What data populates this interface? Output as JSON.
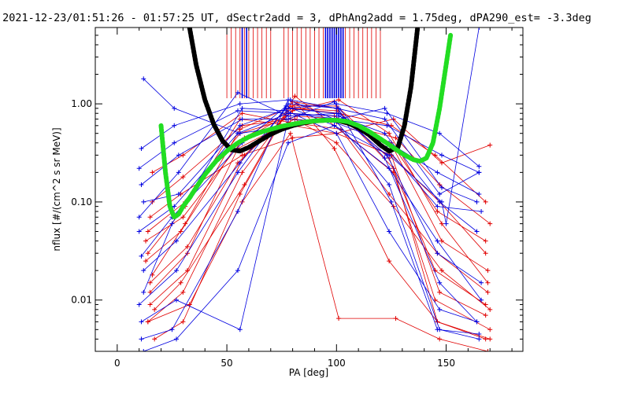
{
  "chart_data": {
    "type": "line",
    "title": "2021-12-23/01:51:26 - 01:57:25 UT, dSectr2add = 3, dPhAng2add = 1.75deg, dPA290_est=  -3.3deg",
    "xlabel": "PA [deg]",
    "ylabel": "nflux [#/(cm^2 s sr MeV)]",
    "xlim": [
      -10,
      185
    ],
    "ylim": [
      0.003,
      6
    ],
    "yscale": "log",
    "grid": false,
    "x_ticks": [
      0,
      50,
      100,
      150
    ],
    "x_tick_labels": [
      "0",
      "50",
      "100",
      "150"
    ],
    "y_ticks": [
      0.01,
      0.1,
      1.0
    ],
    "y_tick_labels": [
      "0.01",
      "0.10",
      "1.00"
    ],
    "colors": {
      "red": "#e00000",
      "blue": "#0000e0",
      "black": "#000000",
      "green": "#22dd22"
    },
    "series": [
      {
        "color": "red",
        "x": [
          17,
          30,
          56,
          80,
          100,
          126,
          146,
          168
        ],
        "y": [
          0.004,
          0.006,
          0.12,
          1.05,
          0.9,
          0.22,
          0.006,
          0.004
        ]
      },
      {
        "color": "red",
        "x": [
          14,
          30,
          57,
          80,
          100,
          125,
          147,
          168
        ],
        "y": [
          0.006,
          0.012,
          0.2,
          0.95,
          0.95,
          0.3,
          0.012,
          0.007
        ]
      },
      {
        "color": "red",
        "x": [
          15,
          32,
          58,
          81,
          100,
          124,
          145,
          168
        ],
        "y": [
          0.009,
          0.02,
          0.3,
          0.9,
          0.85,
          0.28,
          0.02,
          0.009
        ]
      },
      {
        "color": "red",
        "x": [
          13,
          29,
          55,
          79,
          99,
          126,
          148,
          169
        ],
        "y": [
          0.025,
          0.05,
          0.4,
          0.8,
          0.75,
          0.35,
          0.04,
          0.02
        ]
      },
      {
        "color": "red",
        "x": [
          14,
          31,
          56,
          82,
          101,
          125,
          146,
          168
        ],
        "y": [
          0.05,
          0.1,
          0.5,
          0.75,
          0.7,
          0.4,
          0.08,
          0.04
        ]
      },
      {
        "color": "red",
        "x": [
          16,
          30,
          57,
          79,
          100,
          127,
          147,
          170
        ],
        "y": [
          0.1,
          0.18,
          0.6,
          0.7,
          0.65,
          0.45,
          0.15,
          0.06
        ]
      },
      {
        "color": "red",
        "x": [
          15,
          32,
          55,
          80,
          101,
          124,
          148,
          169
        ],
        "y": [
          0.015,
          0.035,
          0.25,
          0.85,
          1.1,
          0.5,
          0.06,
          0.015
        ]
      },
      {
        "color": "red",
        "x": [
          17,
          29,
          58,
          81,
          99,
          126,
          145,
          170
        ],
        "y": [
          0.008,
          0.015,
          0.15,
          1.2,
          0.6,
          0.2,
          0.01,
          0.005
        ]
      },
      {
        "color": "red",
        "x": [
          14,
          31,
          56,
          80,
          100,
          125,
          147,
          168
        ],
        "y": [
          0.03,
          0.09,
          0.7,
          0.6,
          0.5,
          0.3,
          0.1,
          0.03
        ]
      },
      {
        "color": "red",
        "x": [
          16,
          30,
          57,
          78,
          102,
          124,
          146,
          169
        ],
        "y": [
          0.2,
          0.3,
          0.8,
          0.65,
          0.55,
          0.12,
          0.03,
          0.012
        ]
      },
      {
        "color": "red",
        "x": [
          15,
          32,
          55,
          81,
          100,
          126,
          148,
          170
        ],
        "y": [
          0.012,
          0.03,
          0.35,
          0.7,
          0.4,
          0.09,
          0.02,
          0.008
        ]
      },
      {
        "color": "red",
        "x": [
          13,
          30,
          58,
          80,
          101,
          125,
          145,
          168
        ],
        "y": [
          0.04,
          0.07,
          0.45,
          0.9,
          0.8,
          0.6,
          0.3,
          0.1
        ]
      },
      {
        "color": "red",
        "x": [
          14,
          33,
          57,
          79,
          101,
          127,
          147,
          169
        ],
        "y": [
          0.006,
          0.009,
          0.1,
          0.5,
          0.0065,
          0.0065,
          0.004,
          0.003
        ]
      },
      {
        "color": "red",
        "x": [
          16,
          31,
          56,
          82,
          99,
          124,
          146,
          170
        ],
        "y": [
          0.018,
          0.06,
          0.55,
          1.0,
          0.35,
          0.025,
          0.006,
          0.004
        ]
      },
      {
        "color": "red",
        "x": [
          15,
          29,
          57,
          80,
          100,
          126,
          148,
          170
        ],
        "y": [
          0.07,
          0.12,
          0.3,
          0.45,
          0.5,
          0.7,
          0.25,
          0.38
        ]
      },
      {
        "color": "blue",
        "x": [
          11,
          25,
          55,
          78,
          99,
          124,
          147,
          165
        ],
        "y": [
          0.004,
          0.005,
          0.08,
          1.1,
          0.7,
          0.15,
          0.005,
          0.004
        ]
      },
      {
        "color": "blue",
        "x": [
          12,
          27,
          56,
          77,
          100,
          123,
          146,
          166
        ],
        "y": [
          0.02,
          0.04,
          0.25,
          0.9,
          0.8,
          0.3,
          0.03,
          0.015
        ]
      },
      {
        "color": "blue",
        "x": [
          10,
          26,
          55,
          78,
          101,
          122,
          147,
          164
        ],
        "y": [
          0.05,
          0.09,
          0.5,
          0.8,
          0.75,
          0.5,
          0.1,
          0.05
        ]
      },
      {
        "color": "blue",
        "x": [
          11,
          28,
          57,
          77,
          99,
          124,
          146,
          165
        ],
        "y": [
          0.15,
          0.3,
          0.7,
          0.7,
          0.65,
          0.4,
          0.2,
          0.12
        ]
      },
      {
        "color": "blue",
        "x": [
          12,
          26,
          56,
          79,
          100,
          123,
          148,
          165
        ],
        "y": [
          1.8,
          0.9,
          0.5,
          0.6,
          0.7,
          0.6,
          0.3,
          0.2
        ]
      },
      {
        "color": "blue",
        "x": [
          10,
          27,
          55,
          78,
          101,
          122,
          147,
          164
        ],
        "y": [
          0.009,
          0.02,
          0.2,
          1.0,
          0.9,
          0.28,
          0.015,
          0.006
        ]
      },
      {
        "color": "blue",
        "x": [
          11,
          25,
          57,
          77,
          99,
          124,
          146,
          166
        ],
        "y": [
          0.028,
          0.07,
          0.4,
          0.95,
          0.6,
          0.22,
          0.04,
          0.01
        ]
      },
      {
        "color": "blue",
        "x": [
          12,
          28,
          56,
          78,
          100,
          123,
          147,
          165
        ],
        "y": [
          0.1,
          0.12,
          0.6,
          0.9,
          1.0,
          0.8,
          0.5,
          0.23
        ]
      },
      {
        "color": "blue",
        "x": [
          10,
          26,
          55,
          79,
          101,
          122,
          148,
          164
        ],
        "y": [
          0.22,
          0.4,
          0.85,
          0.8,
          0.7,
          0.9,
          0.14,
          0.1
        ]
      },
      {
        "color": "blue",
        "x": [
          11,
          27,
          56,
          78,
          99,
          125,
          146,
          165
        ],
        "y": [
          0.006,
          0.01,
          0.005,
          0.7,
          1.05,
          0.1,
          0.005,
          0.0045
        ]
      },
      {
        "color": "blue",
        "x": [
          12,
          25,
          57,
          77,
          100,
          124,
          147,
          164
        ],
        "y": [
          0.012,
          0.06,
          0.9,
          0.85,
          0.5,
          0.05,
          0.008,
          0.006
        ]
      },
      {
        "color": "blue",
        "x": [
          10,
          28,
          55,
          78,
          101,
          123,
          146,
          166
        ],
        "y": [
          0.07,
          0.2,
          1.3,
          0.75,
          0.8,
          0.35,
          0.09,
          0.08
        ]
      },
      {
        "color": "blue",
        "x": [
          11,
          26,
          56,
          79,
          100,
          122,
          147,
          165
        ],
        "y": [
          0.35,
          0.6,
          1.0,
          1.1,
          0.9,
          0.7,
          0.12,
          0.2
        ]
      },
      {
        "color": "blue",
        "x": [
          12,
          27,
          55,
          78,
          99,
          124,
          148,
          150,
          165
        ],
        "y": [
          0.003,
          0.004,
          0.02,
          0.4,
          0.6,
          0.3,
          0.1,
          0.06,
          6
        ]
      }
    ],
    "fits": [
      {
        "name": "",
        "color": "black",
        "style": "dotted",
        "x": [
          33,
          36,
          40,
          44,
          48,
          52,
          56,
          60,
          65,
          70,
          75,
          80,
          85,
          90,
          95,
          100,
          105,
          110,
          115,
          120,
          124,
          128,
          131,
          134,
          137
        ],
        "y": [
          6,
          2.5,
          1.1,
          0.62,
          0.42,
          0.34,
          0.33,
          0.36,
          0.42,
          0.49,
          0.55,
          0.6,
          0.64,
          0.67,
          0.68,
          0.68,
          0.64,
          0.57,
          0.48,
          0.38,
          0.33,
          0.36,
          0.6,
          1.5,
          6
        ]
      },
      {
        "name": "",
        "color": "green",
        "style": "dotted",
        "x": [
          20,
          22,
          24,
          26,
          28,
          30,
          33,
          36,
          40,
          45,
          50,
          55,
          60,
          65,
          70,
          75,
          80,
          85,
          90,
          95,
          100,
          105,
          110,
          115,
          120,
          125,
          130,
          135,
          138,
          141,
          144,
          147,
          150,
          152
        ],
        "y": [
          0.6,
          0.2,
          0.09,
          0.07,
          0.075,
          0.09,
          0.11,
          0.14,
          0.19,
          0.26,
          0.33,
          0.4,
          0.46,
          0.51,
          0.55,
          0.59,
          0.62,
          0.65,
          0.67,
          0.68,
          0.68,
          0.66,
          0.6,
          0.52,
          0.44,
          0.37,
          0.31,
          0.27,
          0.26,
          0.28,
          0.4,
          0.9,
          2.5,
          5
        ]
      }
    ],
    "vlines": [
      {
        "color": "red",
        "x": [
          50,
          52,
          54,
          56,
          58,
          60,
          62,
          64,
          66,
          68,
          70,
          76,
          78,
          80,
          82,
          84,
          86,
          88,
          90,
          92,
          94,
          96,
          98,
          100,
          102,
          104,
          106,
          108,
          110,
          112,
          114,
          116,
          118,
          120
        ]
      },
      {
        "color": "blue",
        "x": [
          57,
          59,
          99,
          101
        ]
      },
      {
        "color": "blue",
        "x": [
          95,
          96,
          97,
          98,
          100,
          102,
          103
        ]
      }
    ]
  }
}
